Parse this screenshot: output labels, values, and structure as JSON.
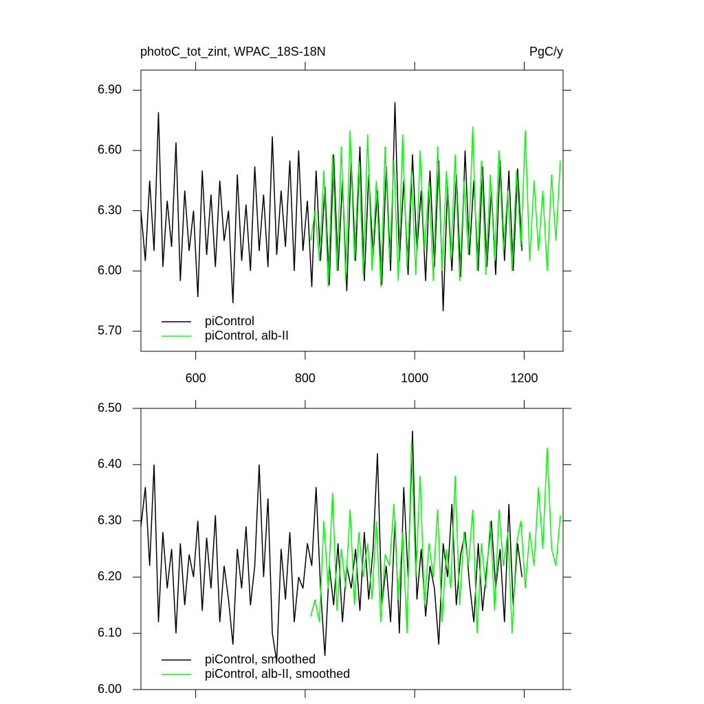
{
  "chart_data": [
    {
      "type": "line",
      "title": "photoC_tot_zint, WPAC_18S-18N",
      "units": "PgC/y",
      "xlim": [
        500,
        1271
      ],
      "xticks": [
        600,
        800,
        1000,
        1200
      ],
      "ylim": [
        5.6,
        7.0
      ],
      "yticks": [
        {
          "value": 5.7,
          "label": "5.70"
        },
        {
          "value": 6.0,
          "label": "6.00"
        },
        {
          "value": 6.3,
          "label": "6.30"
        },
        {
          "value": 6.6,
          "label": "6.60"
        },
        {
          "value": 6.9,
          "label": "6.90"
        }
      ],
      "series": [
        {
          "name": "piControl",
          "color": "#000000",
          "x": [
            500,
            508,
            516,
            524,
            532,
            540,
            548,
            556,
            564,
            572,
            580,
            588,
            596,
            604,
            612,
            620,
            628,
            636,
            644,
            652,
            660,
            668,
            676,
            684,
            692,
            700,
            708,
            716,
            724,
            732,
            740,
            748,
            756,
            764,
            772,
            780,
            788,
            796,
            804,
            812,
            820,
            828,
            836,
            844,
            852,
            860,
            868,
            876,
            884,
            892,
            900,
            908,
            916,
            924,
            932,
            940,
            948,
            956,
            964,
            972,
            980,
            988,
            996,
            1004,
            1012,
            1020,
            1028,
            1036,
            1044,
            1052,
            1060,
            1068,
            1076,
            1084,
            1092,
            1100,
            1108,
            1116,
            1124,
            1132,
            1140,
            1148,
            1156,
            1164,
            1172,
            1180,
            1188,
            1196
          ],
          "values": [
            6.3,
            6.05,
            6.45,
            6.1,
            6.79,
            6.02,
            6.35,
            6.12,
            6.64,
            5.95,
            6.4,
            6.1,
            6.3,
            5.87,
            6.5,
            6.08,
            6.38,
            6.02,
            6.45,
            6.15,
            6.3,
            5.84,
            6.48,
            6.05,
            6.33,
            6.0,
            6.52,
            6.1,
            6.38,
            6.02,
            6.67,
            6.08,
            6.4,
            6.12,
            6.55,
            6.0,
            6.6,
            6.1,
            6.35,
            5.92,
            6.5,
            6.05,
            6.42,
            5.93,
            6.58,
            6.0,
            6.45,
            5.9,
            6.55,
            6.05,
            6.62,
            5.95,
            6.48,
            6.08,
            6.4,
            5.93,
            6.52,
            6.0,
            6.84,
            6.05,
            6.45,
            5.98,
            6.58,
            6.1,
            6.4,
            5.95,
            6.5,
            6.02,
            6.55,
            5.8,
            6.42,
            6.0,
            6.48,
            5.97,
            6.6,
            6.08,
            6.45,
            6.0,
            6.52,
            6.02,
            6.4,
            5.98,
            6.55,
            6.05,
            6.5,
            6.0,
            6.51,
            6.1
          ]
        },
        {
          "name": "piControl, alb-II",
          "color": "#00ff00",
          "x": [
            810,
            818,
            826,
            834,
            842,
            850,
            858,
            866,
            874,
            882,
            890,
            898,
            906,
            914,
            922,
            930,
            938,
            946,
            954,
            962,
            970,
            978,
            986,
            994,
            1002,
            1010,
            1018,
            1026,
            1034,
            1042,
            1050,
            1058,
            1066,
            1074,
            1082,
            1090,
            1098,
            1106,
            1114,
            1122,
            1130,
            1138,
            1146,
            1154,
            1162,
            1170,
            1178,
            1186,
            1194,
            1202,
            1210,
            1218,
            1226,
            1234,
            1242,
            1250,
            1258,
            1266
          ],
          "values": [
            6.15,
            6.3,
            6.05,
            6.5,
            5.92,
            6.58,
            6.0,
            6.62,
            5.95,
            6.7,
            6.05,
            6.55,
            5.98,
            6.68,
            6.0,
            6.45,
            5.92,
            6.62,
            6.05,
            6.55,
            5.95,
            6.68,
            6.02,
            6.5,
            5.98,
            6.6,
            6.1,
            6.45,
            5.95,
            6.62,
            6.0,
            6.5,
            6.05,
            6.58,
            5.95,
            6.45,
            6.08,
            6.72,
            6.0,
            6.55,
            5.98,
            6.48,
            6.05,
            6.6,
            6.1,
            6.4,
            6.0,
            6.5,
            6.12,
            6.7,
            6.05,
            6.45,
            6.1,
            6.4,
            6.0,
            6.48,
            6.15,
            6.55
          ]
        }
      ]
    },
    {
      "type": "line",
      "xlim": [
        500,
        1271
      ],
      "xticks": [
        600,
        800,
        1000,
        1200
      ],
      "ylim": [
        6.0,
        6.5
      ],
      "yticks": [
        {
          "value": 6.0,
          "label": "6.00"
        },
        {
          "value": 6.1,
          "label": "6.10"
        },
        {
          "value": 6.2,
          "label": "6.20"
        },
        {
          "value": 6.3,
          "label": "6.30"
        },
        {
          "value": 6.4,
          "label": "6.40"
        },
        {
          "value": 6.5,
          "label": "6.50"
        }
      ],
      "series": [
        {
          "name": "piControl, smoothed",
          "color": "#000000",
          "x": [
            500,
            508,
            516,
            524,
            532,
            540,
            548,
            556,
            564,
            572,
            580,
            588,
            596,
            604,
            612,
            620,
            628,
            636,
            644,
            652,
            660,
            668,
            676,
            684,
            692,
            700,
            708,
            716,
            724,
            732,
            740,
            748,
            756,
            764,
            772,
            780,
            788,
            796,
            804,
            812,
            820,
            828,
            836,
            844,
            852,
            860,
            868,
            876,
            884,
            892,
            900,
            908,
            916,
            924,
            932,
            940,
            948,
            956,
            964,
            972,
            980,
            988,
            996,
            1004,
            1012,
            1020,
            1028,
            1036,
            1044,
            1052,
            1060,
            1068,
            1076,
            1084,
            1092,
            1100,
            1108,
            1116,
            1124,
            1132,
            1140,
            1148,
            1156,
            1164,
            1172,
            1180,
            1188,
            1196
          ],
          "values": [
            6.29,
            6.36,
            6.22,
            6.4,
            6.12,
            6.28,
            6.18,
            6.25,
            6.1,
            6.26,
            6.15,
            6.24,
            6.2,
            6.3,
            6.14,
            6.27,
            6.18,
            6.31,
            6.12,
            6.22,
            6.16,
            6.08,
            6.25,
            6.18,
            6.29,
            6.15,
            6.22,
            6.4,
            6.2,
            6.34,
            6.1,
            6.05,
            6.25,
            6.16,
            6.28,
            6.12,
            6.2,
            6.18,
            6.26,
            6.22,
            6.36,
            6.18,
            6.06,
            6.22,
            6.15,
            6.26,
            6.12,
            6.22,
            6.18,
            6.25,
            6.14,
            6.28,
            6.16,
            6.25,
            6.42,
            6.15,
            6.22,
            6.12,
            6.3,
            6.1,
            6.36,
            6.2,
            6.46,
            6.16,
            6.25,
            6.13,
            6.22,
            6.18,
            6.08,
            6.26,
            6.2,
            6.33,
            6.15,
            6.24,
            6.28,
            6.19,
            6.12,
            6.26,
            6.14,
            6.22,
            6.3,
            6.18,
            6.25,
            6.12,
            6.33,
            6.15,
            6.26,
            6.2
          ]
        },
        {
          "name": "piControl, alb-II, smoothed",
          "color": "#00ff00",
          "x": [
            810,
            818,
            826,
            834,
            842,
            850,
            858,
            866,
            874,
            882,
            890,
            898,
            906,
            914,
            922,
            930,
            938,
            946,
            954,
            962,
            970,
            978,
            986,
            994,
            1002,
            1010,
            1018,
            1026,
            1034,
            1042,
            1050,
            1058,
            1066,
            1074,
            1082,
            1090,
            1098,
            1106,
            1114,
            1122,
            1130,
            1138,
            1146,
            1154,
            1162,
            1170,
            1178,
            1186,
            1194,
            1202,
            1210,
            1218,
            1226,
            1234,
            1242,
            1250,
            1258,
            1266
          ],
          "values": [
            6.13,
            6.16,
            6.12,
            6.3,
            6.18,
            6.35,
            6.14,
            6.25,
            6.18,
            6.32,
            6.15,
            6.28,
            6.2,
            6.26,
            6.16,
            6.3,
            6.12,
            6.24,
            6.22,
            6.33,
            6.16,
            6.28,
            6.1,
            6.44,
            6.2,
            6.38,
            6.15,
            6.26,
            6.2,
            6.32,
            6.12,
            6.25,
            6.18,
            6.38,
            6.15,
            6.28,
            6.22,
            6.32,
            6.1,
            6.26,
            6.18,
            6.3,
            6.14,
            6.32,
            6.22,
            6.28,
            6.1,
            6.26,
            6.3,
            6.18,
            6.28,
            6.22,
            6.36,
            6.25,
            6.43,
            6.25,
            6.22,
            6.31
          ]
        }
      ]
    }
  ]
}
